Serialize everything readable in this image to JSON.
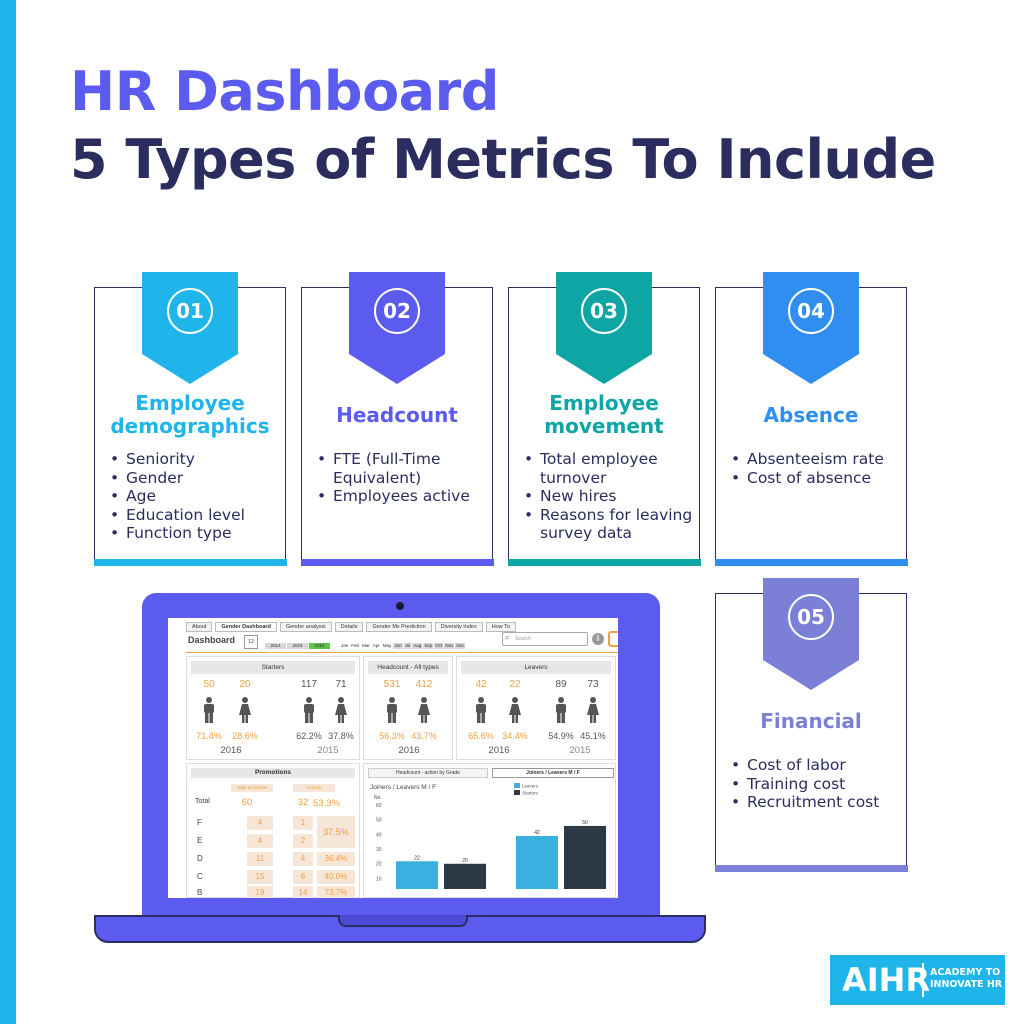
{
  "header": {
    "title_line1": "HR Dashboard",
    "title_line2": "5 Types of Metrics To Include"
  },
  "colors": {
    "accent_blue": "#1fb5ea",
    "accent_purple": "#5b5bf0",
    "teal": "#0ea5a5",
    "sky": "#2f8ef0",
    "lavender": "#7b7fd6",
    "navy": "#2b2d5e",
    "orange": "#f0a040"
  },
  "cards": [
    {
      "number": "01",
      "title_line1": "Employee",
      "title_line2": "demographics",
      "items": [
        "Seniority",
        "Gender",
        "Age",
        "Education level",
        "Function type"
      ]
    },
    {
      "number": "02",
      "title": "Headcount",
      "items": [
        "FTE (Full-Time Equivalent)",
        "Employees active"
      ]
    },
    {
      "number": "03",
      "title_line1": "Employee",
      "title_line2": "movement",
      "items": [
        "Total employee turnover",
        "New hires",
        "Reasons for leaving survey data"
      ]
    },
    {
      "number": "04",
      "title": "Absence",
      "items": [
        "Absenteeism rate",
        "Cost of absence"
      ]
    },
    {
      "number": "05",
      "title": "Financial",
      "items": [
        "Cost of labor",
        "Training cost",
        "Recruitment cost"
      ]
    }
  ],
  "screen": {
    "tabs": [
      "About",
      "Gender Dashboard",
      "Gender analysis",
      "Details",
      "Gender Mx Prediction",
      "Diversity Index",
      "How To"
    ],
    "dashboard_title": "Dashboard",
    "calendar_day": "12",
    "years": [
      "2014",
      "2015",
      "2016"
    ],
    "months": [
      "Jan",
      "Feb",
      "Mar",
      "Apr",
      "May",
      "Jun",
      "Jul",
      "Aug",
      "Sep",
      "Oct",
      "Nov",
      "Dec"
    ],
    "search_placeholder": "Search",
    "starters": {
      "head": "Starters",
      "y2016": {
        "label": "2016",
        "male": "50",
        "female": "20",
        "male_pct": "71.4%",
        "female_pct": "28.6%"
      },
      "y2015": {
        "label": "2015",
        "male": "117",
        "female": "71",
        "male_pct": "62.2%",
        "female_pct": "37.8%"
      }
    },
    "headcount": {
      "head": "Headcount - All types",
      "y2016": {
        "label": "2016",
        "male": "531",
        "female": "412",
        "male_pct": "56.3%",
        "female_pct": "43.7%"
      }
    },
    "leavers": {
      "head": "Leavers",
      "y2016": {
        "label": "2016",
        "male": "42",
        "female": "22",
        "male_pct": "65.6%",
        "female_pct": "34.4%"
      },
      "y2015": {
        "label": "2015",
        "male": "89",
        "female": "73",
        "male_pct": "54.9%",
        "female_pct": "45.1%"
      }
    },
    "promotions": {
      "head": "Promotions",
      "col_male_female": "Male & Female",
      "col_female": "Female",
      "total_label": "Total",
      "total_all": "60",
      "total_female": "32",
      "total_pct": "53.3%",
      "rows": [
        {
          "grade": "F",
          "all": "4",
          "female": "1"
        },
        {
          "grade": "E",
          "all": "4",
          "female": "2"
        },
        {
          "grade": "D",
          "all": "11",
          "female": "4",
          "pct": "36.4%"
        },
        {
          "grade": "C",
          "all": "15",
          "female": "6",
          "pct": "40.0%"
        },
        {
          "grade": "B",
          "all": "19",
          "female": "14",
          "pct": "73.7%"
        }
      ],
      "fe_merged_pct": "37.5%"
    },
    "chart_tabs": [
      "Headcount - action by Grade",
      "Joiners / Leavers M / F"
    ],
    "chart_data": {
      "type": "bar",
      "title": "Joiners / Leavers M / F",
      "ylabel": "No.",
      "ylim": [
        0,
        60
      ],
      "yticks": [
        "60",
        "50",
        "40",
        "30",
        "20",
        "10"
      ],
      "legend": [
        "Leavers",
        "Starters"
      ],
      "series": [
        {
          "name": "Leavers",
          "color": "#3ab0e0",
          "values": [
            22,
            42
          ]
        },
        {
          "name": "Starters",
          "color": "#2c3a45",
          "values": [
            20,
            50
          ]
        }
      ]
    }
  },
  "logo": {
    "mark": "AIHR",
    "line1": "ACADEMY TO",
    "line2": "INNOVATE HR"
  }
}
